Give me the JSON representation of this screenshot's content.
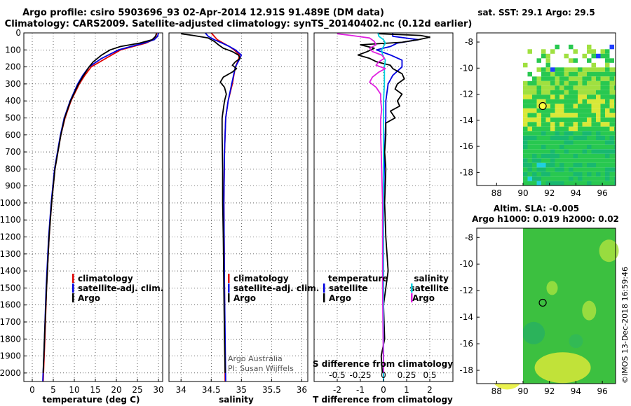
{
  "header": {
    "line1": "Argo profile: csiro 5903696_93 02-Apr-2014 12.91S 91.489E (DM data)",
    "line2": "Climatology: CARS2009. Satellite-adjusted climatology: synTS_20140402.nc (0.12d earlier)"
  },
  "colors": {
    "climatology": "#e00000",
    "satellite": "#0000e0",
    "argo": "#000000",
    "sat_salinity": "#00d0e0",
    "argo_salinity_diff": "#e020e0"
  },
  "chart_data": [
    {
      "type": "line",
      "id": "temperature",
      "xlabel": "temperature (deg C)",
      "ylabel": "",
      "xlim": [
        -2,
        31
      ],
      "ylim": [
        2050,
        0
      ],
      "xticks": [
        "0",
        "5",
        "10",
        "15",
        "20",
        "25",
        "30"
      ],
      "xtick_values": [
        0,
        5,
        10,
        15,
        20,
        25,
        30
      ],
      "yticks": [
        "0",
        "100",
        "200",
        "300",
        "400",
        "500",
        "600",
        "700",
        "800",
        "900",
        "1000",
        "1100",
        "1200",
        "1300",
        "1400",
        "1500",
        "1600",
        "1700",
        "1800",
        "1900",
        "2000"
      ],
      "ytick_values": [
        0,
        100,
        200,
        300,
        400,
        500,
        600,
        700,
        800,
        900,
        1000,
        1100,
        1200,
        1300,
        1400,
        1500,
        1600,
        1700,
        1800,
        1900,
        2000
      ],
      "legend": [
        "climatology",
        "satellite-adj. clim.",
        "Argo"
      ],
      "series": [
        {
          "name": "climatology",
          "color": "#e00000",
          "depth": [
            0,
            20,
            40,
            60,
            80,
            100,
            150,
            200,
            250,
            300,
            400,
            500,
            600,
            800,
            1000,
            1200,
            1500,
            1800,
            2050
          ],
          "values": [
            29.6,
            29.4,
            28.8,
            27.0,
            24.0,
            21.0,
            17.5,
            14.0,
            12.5,
            11.2,
            9.2,
            7.8,
            6.8,
            5.4,
            4.6,
            4.0,
            3.4,
            3.0,
            2.6
          ]
        },
        {
          "name": "satellite-adj. clim.",
          "color": "#0000e0",
          "depth": [
            0,
            20,
            40,
            60,
            80,
            100,
            150,
            200,
            250,
            300,
            400,
            500,
            600,
            800,
            1000,
            1200,
            1500,
            1800,
            2050
          ],
          "values": [
            30.0,
            29.8,
            29.0,
            26.5,
            23.5,
            20.5,
            16.5,
            13.5,
            12.0,
            10.8,
            9.0,
            7.6,
            6.7,
            5.3,
            4.5,
            3.9,
            3.3,
            2.9,
            2.5
          ]
        },
        {
          "name": "Argo",
          "color": "#000000",
          "depth": [
            5,
            20,
            40,
            60,
            80,
            100,
            130,
            170,
            200,
            250,
            300,
            400,
            500,
            600,
            800,
            1000,
            1200,
            1500,
            1800,
            2000
          ],
          "values": [
            29.5,
            29.3,
            28.5,
            25.5,
            21.0,
            18.5,
            16.5,
            14.5,
            13.5,
            12.2,
            11.0,
            9.1,
            7.7,
            6.8,
            5.4,
            4.6,
            4.0,
            3.4,
            2.9,
            2.6
          ]
        }
      ]
    },
    {
      "type": "line",
      "id": "salinity",
      "xlabel": "salinity",
      "xlim": [
        33.8,
        36.1
      ],
      "ylim": [
        2050,
        0
      ],
      "xticks": [
        "34",
        "34.5",
        "35",
        "35.5",
        "36"
      ],
      "xtick_values": [
        34,
        34.5,
        35,
        35.5,
        36
      ],
      "legend": [
        "climatology",
        "satellite-adj. clim.",
        "Argo"
      ],
      "annotation": [
        "Argo Australia",
        "PI: Susan Wijffels"
      ],
      "series": [
        {
          "name": "climatology",
          "color": "#e00000",
          "depth": [
            0,
            20,
            40,
            60,
            80,
            100,
            130,
            160,
            200,
            300,
            400,
            500,
            700,
            1000,
            1500,
            2050
          ],
          "values": [
            34.5,
            34.55,
            34.6,
            34.7,
            34.8,
            34.88,
            34.97,
            34.95,
            34.9,
            34.85,
            34.78,
            34.74,
            34.72,
            34.71,
            34.72,
            34.73
          ]
        },
        {
          "name": "satellite-adj. clim.",
          "color": "#0000e0",
          "depth": [
            0,
            20,
            40,
            60,
            80,
            100,
            130,
            160,
            200,
            300,
            400,
            500,
            700,
            1000,
            1500,
            2050
          ],
          "values": [
            34.4,
            34.45,
            34.55,
            34.68,
            34.8,
            34.9,
            35.0,
            34.96,
            34.9,
            34.84,
            34.78,
            34.74,
            34.72,
            34.71,
            34.72,
            34.74
          ]
        },
        {
          "name": "Argo",
          "color": "#000000",
          "depth": [
            5,
            15,
            30,
            50,
            70,
            90,
            110,
            130,
            150,
            170,
            190,
            210,
            230,
            260,
            290,
            320,
            360,
            400,
            450,
            500,
            600,
            800,
            1000,
            1200,
            1500,
            1800,
            2000
          ],
          "values": [
            34.0,
            34.2,
            34.45,
            34.55,
            34.62,
            34.7,
            34.85,
            34.95,
            34.98,
            34.9,
            34.85,
            34.92,
            34.85,
            34.7,
            34.65,
            34.72,
            34.75,
            34.72,
            34.7,
            34.68,
            34.68,
            34.69,
            34.69,
            34.7,
            34.71,
            34.72,
            34.73
          ]
        }
      ]
    },
    {
      "type": "line",
      "id": "differences",
      "xlabel": "T difference from climatology",
      "xlabel_top": "S difference from climatology",
      "xlim": [
        -3,
        3
      ],
      "s_xlim": [
        -0.75,
        0.75
      ],
      "ylim": [
        2050,
        0
      ],
      "xticks": [
        "-2",
        "-1",
        "0",
        "1",
        "2"
      ],
      "xtick_values": [
        -2,
        -1,
        0,
        1,
        2
      ],
      "s_xticks": [
        "-0.5",
        "-0.25",
        "0",
        "0.25",
        "0.5"
      ],
      "s_xtick_values": [
        -0.5,
        -0.25,
        0,
        0.25,
        0.5
      ],
      "legend": {
        "temperature_head": "temperature",
        "temperature": [
          "satellite",
          "Argo"
        ],
        "salinity_head": "salinity",
        "salinity": [
          "satellite",
          "Argo"
        ]
      },
      "series": [
        {
          "name": "temperature satellite",
          "color": "#0000e0",
          "axis": "T",
          "depth": [
            0,
            20,
            40,
            60,
            80,
            100,
            130,
            160,
            200,
            250,
            300,
            400,
            500,
            700,
            1000,
            1500,
            2050
          ],
          "values": [
            0.4,
            0.4,
            1.5,
            0.6,
            0.3,
            -0.3,
            0.3,
            0.8,
            0.8,
            0.4,
            0.2,
            0.1,
            0.1,
            0.05,
            0.0,
            0.0,
            0.0
          ]
        },
        {
          "name": "temperature Argo",
          "color": "#000000",
          "axis": "T",
          "depth": [
            5,
            15,
            25,
            40,
            55,
            70,
            90,
            110,
            130,
            150,
            170,
            190,
            210,
            240,
            270,
            300,
            330,
            360,
            400,
            430,
            460,
            500,
            530,
            600,
            700,
            800,
            1000,
            1200,
            1400,
            1500,
            1600,
            1800,
            1900,
            2000
          ],
          "values": [
            -0.2,
            1.6,
            2.0,
            1.5,
            0.8,
            -1.0,
            -0.4,
            -0.7,
            -1.1,
            -0.6,
            -0.3,
            0.3,
            0.4,
            0.8,
            0.9,
            0.6,
            0.5,
            0.8,
            0.6,
            0.7,
            0.3,
            0.5,
            0.1,
            0.1,
            0.05,
            0.1,
            0.05,
            0.1,
            0.2,
            0.1,
            0.0,
            0.05,
            -0.1,
            -0.05
          ]
        },
        {
          "name": "salinity satellite",
          "color": "#00d0e0",
          "axis": "S",
          "depth": [
            0,
            20,
            40,
            60,
            80,
            100,
            130,
            160,
            200,
            300,
            400,
            500,
            700,
            1000,
            1500,
            2050
          ],
          "values": [
            -0.06,
            -0.05,
            0.0,
            0.02,
            0.0,
            -0.02,
            -0.01,
            0.02,
            0.01,
            0.01,
            0.0,
            0.0,
            0.0,
            0.0,
            0.0,
            0.0
          ]
        },
        {
          "name": "salinity Argo",
          "color": "#e020e0",
          "axis": "S",
          "depth": [
            5,
            15,
            30,
            50,
            70,
            90,
            110,
            130,
            150,
            170,
            190,
            210,
            230,
            260,
            290,
            320,
            360,
            400,
            450,
            500,
            600,
            800,
            1000,
            1500,
            2000
          ],
          "values": [
            -0.5,
            -0.35,
            -0.15,
            -0.1,
            -0.08,
            -0.15,
            -0.12,
            -0.02,
            0.01,
            -0.05,
            -0.08,
            0.02,
            -0.05,
            -0.12,
            -0.15,
            -0.08,
            -0.03,
            -0.03,
            -0.02,
            -0.03,
            -0.03,
            -0.02,
            -0.01,
            -0.01,
            0.0
          ]
        }
      ]
    },
    {
      "type": "heatmap",
      "id": "sst_map",
      "title": "sat. SST: 29.1  Argo: 29.5",
      "xlim": [
        86.5,
        97
      ],
      "ylim": [
        -19,
        -7.3
      ],
      "xticks": [
        "88",
        "90",
        "92",
        "94",
        "96"
      ],
      "xtick_values": [
        88,
        90,
        92,
        94,
        96
      ],
      "yticks": [
        "-8",
        "-10",
        "-12",
        "-14",
        "-16",
        "-18"
      ],
      "ytick_values": [
        -8,
        -10,
        -12,
        -14,
        -16,
        -18
      ],
      "argo_position": [
        91.489,
        -12.91
      ]
    },
    {
      "type": "heatmap",
      "id": "sla_map",
      "title": "Altim. SLA: -0.005",
      "subtitle": "Argo h1000: 0.019 h2000: 0.02",
      "xlim": [
        86.5,
        97
      ],
      "ylim": [
        -19,
        -7.3
      ],
      "xticks": [
        "88",
        "90",
        "92",
        "94",
        "96"
      ],
      "xtick_values": [
        88,
        90,
        92,
        94,
        96
      ],
      "yticks": [
        "-8",
        "-10",
        "-12",
        "-14",
        "-16",
        "-18"
      ],
      "ytick_values": [
        -8,
        -10,
        -12,
        -14,
        -16,
        -18
      ],
      "argo_position": [
        91.489,
        -12.91
      ]
    }
  ],
  "footer": {
    "stamp": "©IMOS 13-Dec-2018 16:59:46"
  }
}
